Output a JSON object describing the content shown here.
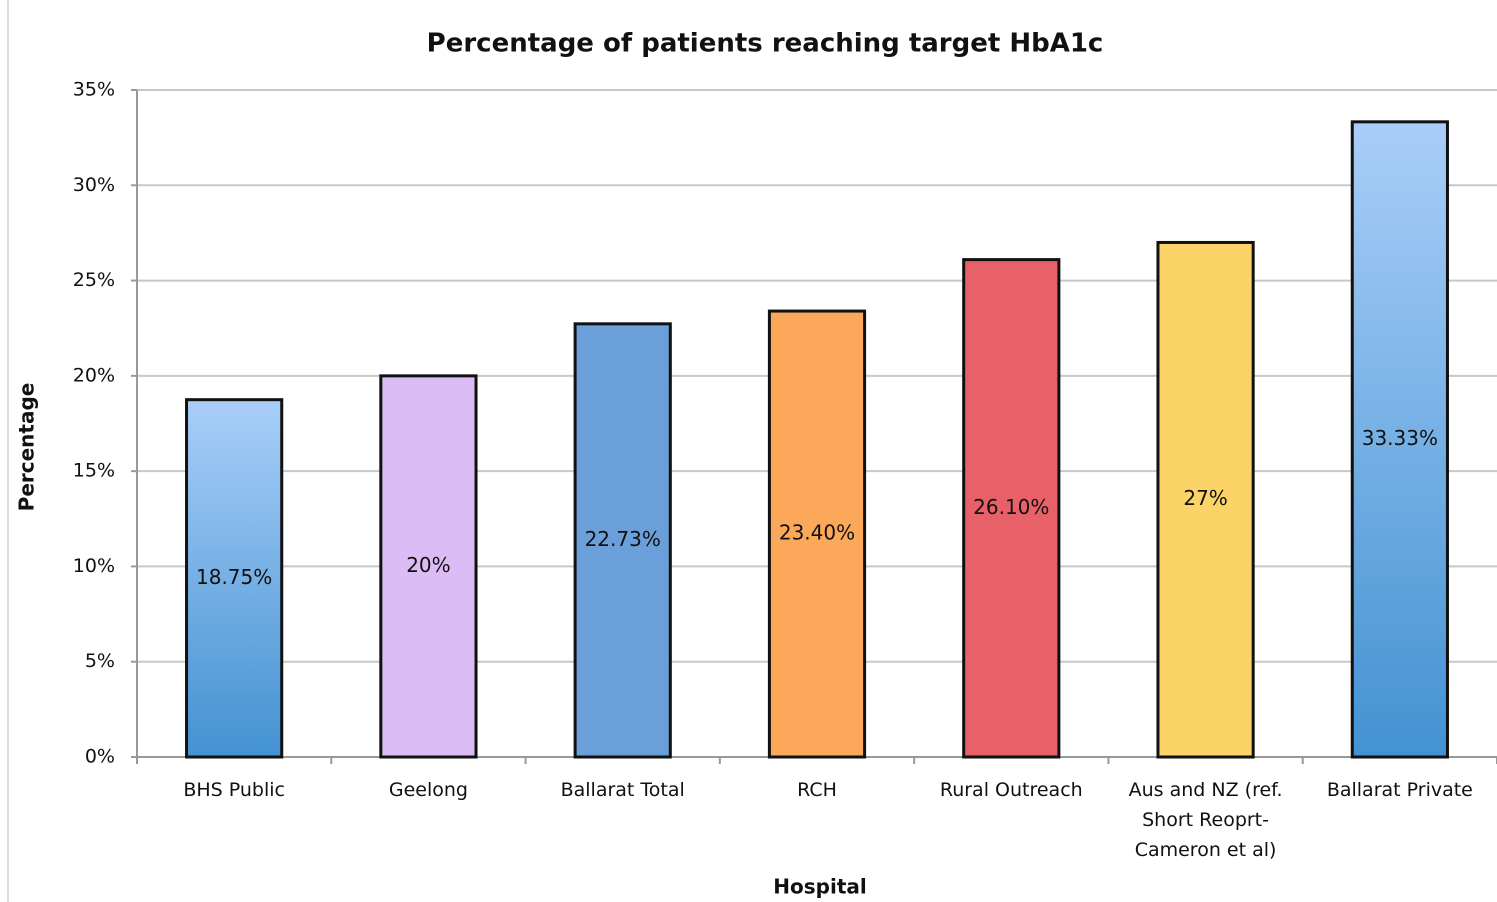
{
  "chart_data": {
    "type": "bar",
    "title": "Percentage of patients reaching target HbA1c",
    "x_label": "Hospital",
    "y_label": "Percentage",
    "categories": [
      "BHS Public",
      "Geelong",
      "Ballarat Total",
      "RCH",
      "Rural Outreach",
      "Aus and NZ (ref. Short Reoprt-Cameron et al)",
      "Ballarat Private"
    ],
    "values": [
      18.75,
      20,
      22.73,
      23.4,
      26.1,
      27,
      33.33
    ],
    "value_labels": [
      "18.75%",
      "20%",
      "22.73%",
      "23.40%",
      "26.10%",
      "27%",
      "33.33%"
    ],
    "colors": [
      [
        "#a9cef8",
        "#4392d2"
      ],
      "#dcbcf5",
      "#6a9fd9",
      "#fca85a",
      "#e86068",
      "#fbd366",
      [
        "#a9cef8",
        "#4392d2"
      ]
    ],
    "ylim": [
      0,
      35
    ],
    "yticks": [
      {
        "value": 0,
        "label": "0%"
      },
      {
        "value": 5,
        "label": "5%"
      },
      {
        "value": 10,
        "label": "10%"
      },
      {
        "value": 15,
        "label": "15%"
      },
      {
        "value": 20,
        "label": "20%"
      },
      {
        "value": 25,
        "label": "25%"
      },
      {
        "value": 30,
        "label": "30%"
      },
      {
        "value": 35,
        "label": "35%"
      }
    ],
    "grid": true
  }
}
